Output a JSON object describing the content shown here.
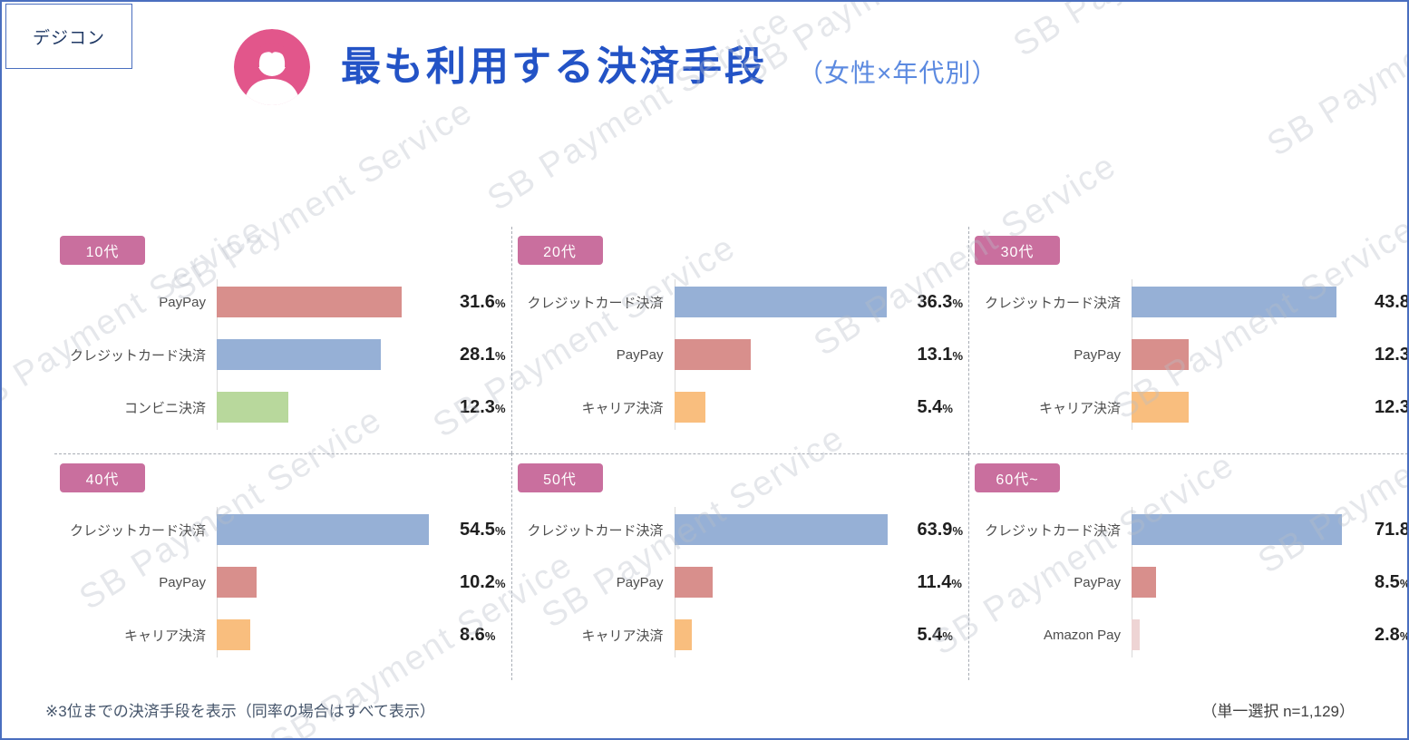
{
  "page": {
    "corner_label": "デジコン",
    "title": "最も利用する決済手段",
    "subtitle": "（女性×年代別）",
    "footnote_left": "※3位までの決済手段を表示（同率の場合はすべて表示）",
    "footnote_right": "（単一選択 n=1,129）",
    "watermark": "SB Payment Service"
  },
  "colors": {
    "border_blue": "#4a6fbf",
    "title_blue": "#2353c6",
    "subtitle_blue": "#5c8ae0",
    "badge_pink": "#c96f9e",
    "avatar_pink": "#e2568b",
    "bar_blue": "#96b0d6",
    "bar_salmon": "#d88f8c",
    "bar_green": "#b8d89c",
    "bar_orange": "#f9be7e",
    "bar_pale_pink": "#eed4d4"
  },
  "chart_data": [
    {
      "type": "bar",
      "orientation": "horizontal",
      "title": "10代",
      "categories": [
        "PayPay",
        "クレジットカード決済",
        "コンビニ決済"
      ],
      "values": [
        31.6,
        28.1,
        12.3
      ],
      "unit": "%",
      "bar_colors": [
        "#d88f8c",
        "#96b0d6",
        "#b8d89c"
      ]
    },
    {
      "type": "bar",
      "orientation": "horizontal",
      "title": "20代",
      "categories": [
        "クレジットカード決済",
        "PayPay",
        "キャリア決済"
      ],
      "values": [
        36.3,
        13.1,
        5.4
      ],
      "unit": "%",
      "bar_colors": [
        "#96b0d6",
        "#d88f8c",
        "#f9be7e"
      ]
    },
    {
      "type": "bar",
      "orientation": "horizontal",
      "title": "30代",
      "categories": [
        "クレジットカード決済",
        "PayPay",
        "キャリア決済"
      ],
      "values": [
        43.8,
        12.3,
        12.3
      ],
      "unit": "%",
      "bar_colors": [
        "#96b0d6",
        "#d88f8c",
        "#f9be7e"
      ]
    },
    {
      "type": "bar",
      "orientation": "horizontal",
      "title": "40代",
      "categories": [
        "クレジットカード決済",
        "PayPay",
        "キャリア決済"
      ],
      "values": [
        54.5,
        10.2,
        8.6
      ],
      "unit": "%",
      "bar_colors": [
        "#96b0d6",
        "#d88f8c",
        "#f9be7e"
      ]
    },
    {
      "type": "bar",
      "orientation": "horizontal",
      "title": "50代",
      "categories": [
        "クレジットカード決済",
        "PayPay",
        "キャリア決済"
      ],
      "values": [
        63.9,
        11.4,
        5.4
      ],
      "unit": "%",
      "bar_colors": [
        "#96b0d6",
        "#d88f8c",
        "#f9be7e"
      ]
    },
    {
      "type": "bar",
      "orientation": "horizontal",
      "title": "60代~",
      "categories": [
        "クレジットカード決済",
        "PayPay",
        "Amazon Pay"
      ],
      "values": [
        71.8,
        8.5,
        2.8
      ],
      "unit": "%",
      "bar_colors": [
        "#96b0d6",
        "#d88f8c",
        "#eed4d4"
      ]
    }
  ]
}
